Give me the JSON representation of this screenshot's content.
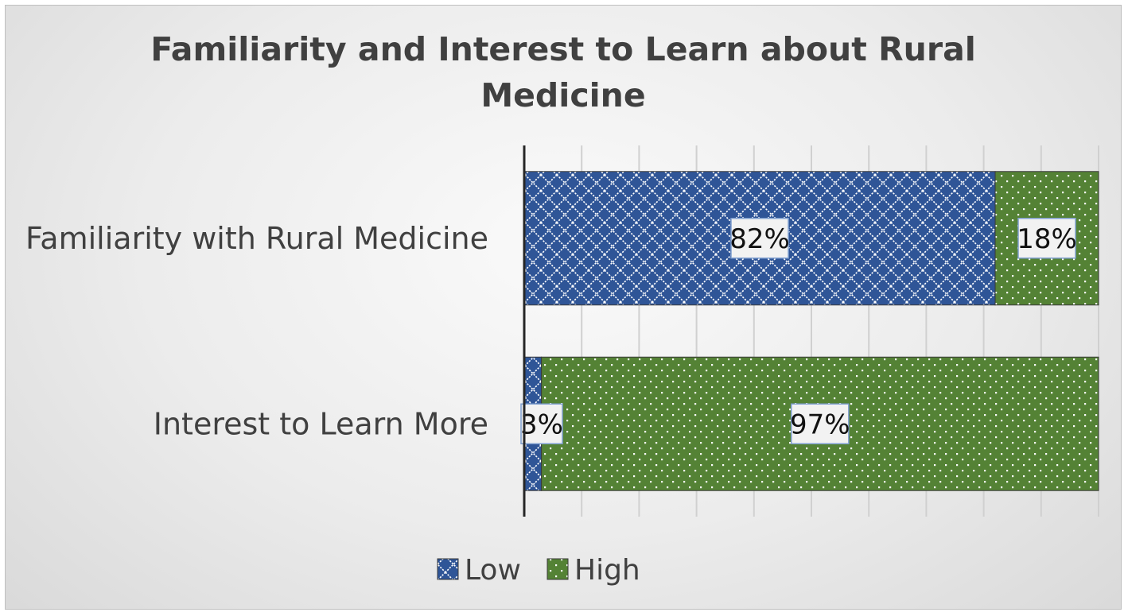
{
  "chart_data": {
    "type": "bar",
    "orientation": "horizontal",
    "stacked": true,
    "title_lines": [
      "Familiarity and Interest to Learn about Rural",
      "Medicine"
    ],
    "categories": [
      "Familiarity with Rural Medicine",
      "Interest to Learn More"
    ],
    "series": [
      {
        "name": "Low",
        "values": [
          82,
          3
        ],
        "labels": [
          "82%",
          "3%"
        ],
        "color": "#2f5597",
        "pattern": "crosshatch"
      },
      {
        "name": "High",
        "values": [
          18,
          97
        ],
        "labels": [
          "18%",
          "97%"
        ],
        "color": "#548235",
        "pattern": "dots"
      }
    ],
    "xlim": [
      0,
      100
    ],
    "x_gridlines": 10,
    "grid": true,
    "legend_position": "bottom"
  }
}
